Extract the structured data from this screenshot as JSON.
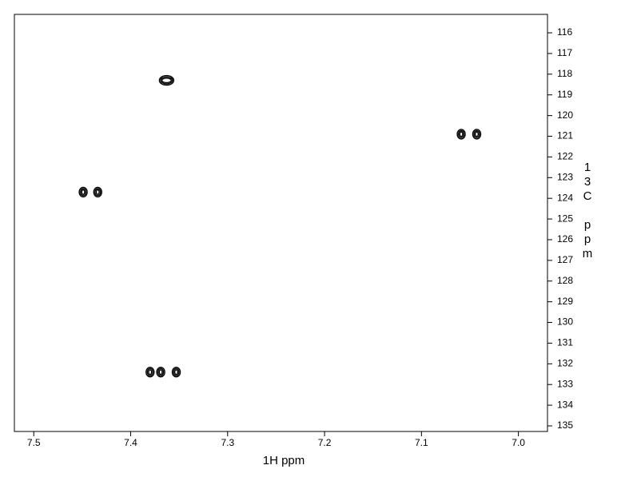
{
  "chart_data": {
    "type": "scatter",
    "x_label": "1H ppm",
    "y_label": "13C ppm",
    "x": [
      7.363,
      7.449,
      7.434,
      7.059,
      7.043,
      7.38,
      7.369,
      7.353
    ],
    "values": [
      118.3,
      123.7,
      123.7,
      120.9,
      120.9,
      132.4,
      132.4,
      132.4
    ],
    "color": "#000000",
    "xlim": [
      7.52,
      6.97
    ],
    "ylim": [
      135.27,
      115.11
    ],
    "xticks": [
      7.5,
      7.4,
      7.3,
      7.2,
      7.1,
      {
        "value": 7,
        "label": "7.0"
      }
    ],
    "yticks": [
      116,
      117,
      118,
      119,
      120,
      121,
      122,
      123,
      124,
      125,
      126,
      127,
      128,
      129,
      130,
      131,
      132,
      133,
      134,
      135
    ]
  }
}
